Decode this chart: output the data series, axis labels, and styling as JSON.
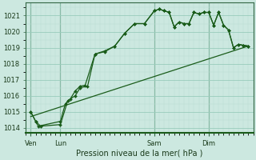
{
  "xlabel": "Pression niveau de la mer( hPa )",
  "background_color": "#cce8e0",
  "grid_color_major": "#99ccbb",
  "grid_color_minor": "#bbddd4",
  "line_color": "#1a5c1a",
  "vline_color": "#336644",
  "ylim": [
    1013.7,
    1021.8
  ],
  "yticks": [
    1014,
    1015,
    1016,
    1017,
    1018,
    1019,
    1020,
    1021
  ],
  "day_labels": [
    "Ven",
    "Lun",
    "Sam",
    "Dim"
  ],
  "day_positions": [
    2,
    14,
    52,
    74
  ],
  "xlim": [
    0,
    92
  ],
  "line1_x": [
    2,
    4,
    5,
    14,
    16,
    18,
    20,
    22,
    24,
    28,
    32,
    36,
    40,
    44,
    48,
    52,
    54,
    56,
    58,
    60,
    62,
    64,
    66,
    68,
    70,
    72,
    74,
    76,
    78,
    80,
    82,
    84,
    86,
    88,
    90
  ],
  "line1_y": [
    1015.0,
    1014.4,
    1014.1,
    1014.4,
    1015.5,
    1015.8,
    1016.3,
    1016.6,
    1016.65,
    1018.6,
    1018.75,
    1019.1,
    1019.9,
    1020.5,
    1020.5,
    1021.3,
    1021.4,
    1021.3,
    1021.2,
    1020.3,
    1020.6,
    1020.5,
    1020.5,
    1021.2,
    1021.1,
    1021.2,
    1021.2,
    1020.4,
    1021.2,
    1020.4,
    1020.1,
    1019.0,
    1019.2,
    1019.15,
    1019.1
  ],
  "line2_x": [
    2,
    4,
    6,
    14,
    17,
    20,
    22,
    25,
    28,
    32,
    36,
    40,
    44,
    48,
    52,
    54,
    56,
    58,
    60,
    62,
    64,
    66,
    68,
    70,
    72,
    74,
    76,
    78,
    80,
    82,
    84,
    86,
    88,
    90
  ],
  "line2_y": [
    1015.0,
    1014.4,
    1014.1,
    1014.2,
    1015.7,
    1016.0,
    1016.5,
    1016.6,
    1018.6,
    1018.8,
    1019.1,
    1019.9,
    1020.5,
    1020.5,
    1021.3,
    1021.4,
    1021.3,
    1021.2,
    1020.3,
    1020.6,
    1020.5,
    1020.5,
    1021.2,
    1021.1,
    1021.2,
    1021.2,
    1020.4,
    1021.2,
    1020.4,
    1020.1,
    1019.0,
    1019.2,
    1019.15,
    1019.1
  ],
  "trend_x": [
    2,
    90
  ],
  "trend_y": [
    1014.7,
    1019.1
  ]
}
